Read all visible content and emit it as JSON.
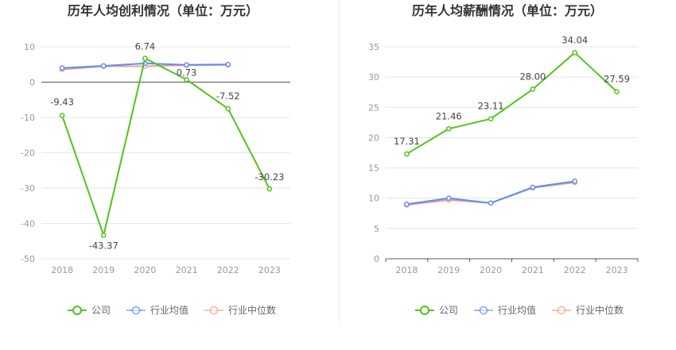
{
  "chart_data": [
    {
      "type": "line",
      "title": "历年人均创利情况（单位：万元）",
      "categories": [
        "2018",
        "2019",
        "2020",
        "2021",
        "2022",
        "2023"
      ],
      "ylim": [
        -50,
        10
      ],
      "yticks": [
        10,
        0,
        -10,
        -20,
        -30,
        -40,
        -50
      ],
      "grid": true,
      "legend": "bottom",
      "series": [
        {
          "name": "公司",
          "color": "#52c41a",
          "values": [
            -9.43,
            -43.37,
            6.74,
            0.73,
            -7.52,
            -30.23
          ],
          "labels": [
            "-9.43",
            "-43.37",
            "6.74",
            "0.73",
            "-7.52",
            "-30.23"
          ]
        },
        {
          "name": "行业均值",
          "color": "#5b8ff9",
          "values": [
            4.0,
            4.6,
            5.3,
            4.9,
            5.0,
            null
          ]
        },
        {
          "name": "行业中位数",
          "color": "#f4a088",
          "values": [
            3.6,
            4.5,
            4.5,
            4.8,
            4.9,
            null
          ]
        }
      ]
    },
    {
      "type": "line",
      "title": "历年人均薪酬情况（单位：万元）",
      "categories": [
        "2018",
        "2019",
        "2020",
        "2021",
        "2022",
        "2023"
      ],
      "ylim": [
        0,
        35
      ],
      "yticks": [
        35,
        30,
        25,
        20,
        15,
        10,
        5,
        0
      ],
      "grid": true,
      "legend": "bottom",
      "series": [
        {
          "name": "公司",
          "color": "#52c41a",
          "values": [
            17.31,
            21.46,
            23.11,
            28.0,
            34.04,
            27.59
          ],
          "labels": [
            "17.31",
            "21.46",
            "23.11",
            "28.00",
            "34.04",
            "27.59"
          ]
        },
        {
          "name": "行业均值",
          "color": "#5b8ff9",
          "values": [
            9.0,
            10.0,
            9.2,
            11.8,
            12.8,
            null
          ]
        },
        {
          "name": "行业中位数",
          "color": "#f4a088",
          "values": [
            8.9,
            9.7,
            9.2,
            11.7,
            12.6,
            null
          ]
        }
      ]
    }
  ]
}
